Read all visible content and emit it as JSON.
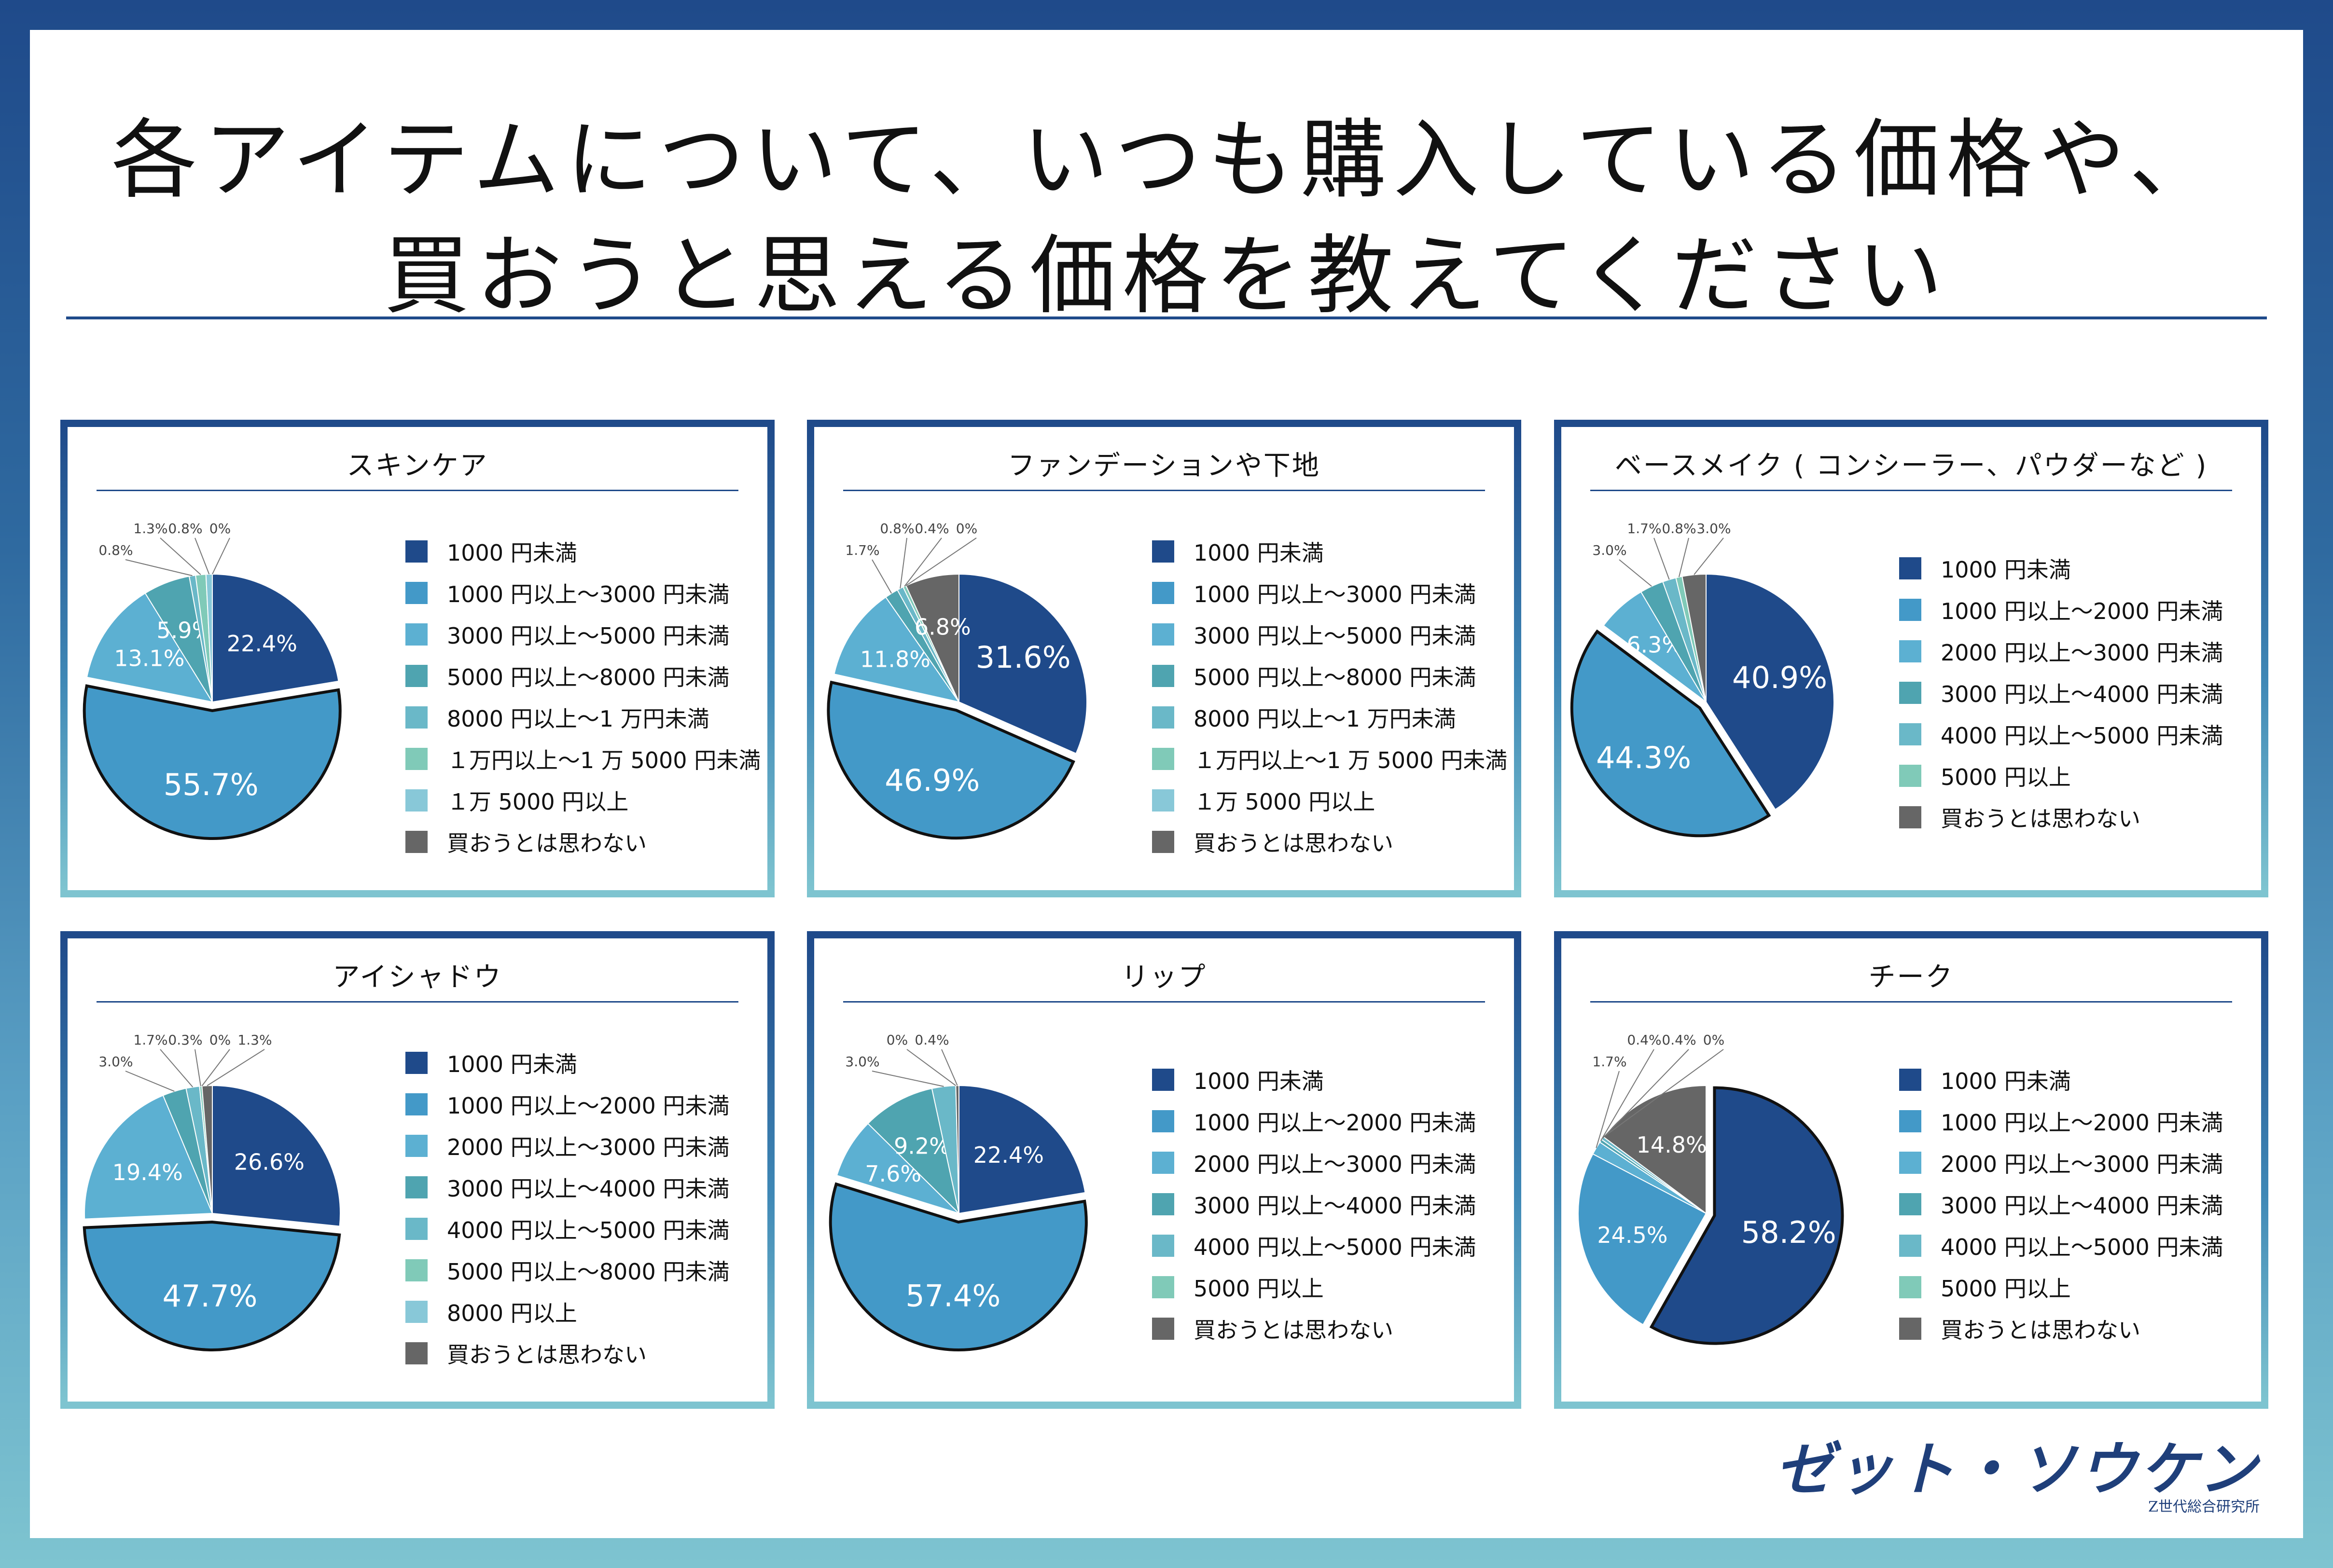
{
  "title_line1": "各アイテムについて、いつも購入している価格や、",
  "title_line2": "買おうと思える価格を教えてください",
  "logo_text": "ゼット・ソウケン",
  "logo_sub": "Z世代総合研究所",
  "colors": [
    "#1f4a8a",
    "#4399c8",
    "#5cb0d2",
    "#4fa4b0",
    "#6ab8c8",
    "#80cab8",
    "#88c8d8",
    "#666666"
  ],
  "chart_data": [
    {
      "type": "pie",
      "title": "スキンケア",
      "categories": [
        "1000 円未満",
        "1000 円以上～3000 円未満",
        "3000 円以上～5000 円未満",
        "5000 円以上～8000 円未満",
        "8000 円以上～1 万円未満",
        "１万円以上～1 万 5000 円未満",
        "１万 5000 円以上",
        "買おうとは思わない"
      ],
      "values": [
        22.4,
        55.7,
        13.1,
        5.9,
        0.8,
        1.3,
        0.8,
        0
      ],
      "labels": [
        "22.4%",
        "55.7%",
        "13.1%",
        "5.9%",
        "0.8%",
        "1.3%",
        "0.8%",
        "0%"
      ],
      "colors": [
        "#1f4a8a",
        "#4399c8",
        "#5cb0d2",
        "#4fa4b0",
        "#6ab8c8",
        "#80cab8",
        "#88c8d8",
        "#666666"
      ],
      "exploded": 1
    },
    {
      "type": "pie",
      "title": "ファンデーションや下地",
      "categories": [
        "1000 円未満",
        "1000 円以上～3000 円未満",
        "3000 円以上～5000 円未満",
        "5000 円以上～8000 円未満",
        "8000 円以上～1 万円未満",
        "１万円以上～1 万 5000 円未満",
        "１万 5000 円以上",
        "買おうとは思わない"
      ],
      "values": [
        31.6,
        46.9,
        11.8,
        1.7,
        0.8,
        0.4,
        0,
        6.8
      ],
      "labels": [
        "31.6%",
        "46.9%",
        "11.8%",
        "1.7%",
        "0.8%",
        "0.4%",
        "0%",
        "6.8%"
      ],
      "colors": [
        "#1f4a8a",
        "#4399c8",
        "#5cb0d2",
        "#4fa4b0",
        "#6ab8c8",
        "#80cab8",
        "#88c8d8",
        "#666666"
      ],
      "exploded": 1
    },
    {
      "type": "pie",
      "title": "ベースメイク ( コンシーラー、パウダーなど )",
      "categories": [
        "1000 円未満",
        "1000 円以上～2000 円未満",
        "2000 円以上～3000 円未満",
        "3000 円以上～4000 円未満",
        "4000 円以上～5000 円未満",
        "5000 円以上",
        "買おうとは思わない"
      ],
      "values": [
        40.9,
        44.3,
        6.3,
        3.0,
        1.7,
        0.8,
        3.0
      ],
      "labels": [
        "40.9%",
        "44.3%",
        "6.3%",
        "3.0%",
        "1.7%",
        "0.8%",
        "3.0%"
      ],
      "colors": [
        "#1f4a8a",
        "#4399c8",
        "#5cb0d2",
        "#4fa4b0",
        "#6ab8c8",
        "#80cab8",
        "#666666"
      ],
      "exploded": 1
    },
    {
      "type": "pie",
      "title": "アイシャドウ",
      "categories": [
        "1000 円未満",
        "1000 円以上～2000 円未満",
        "2000 円以上～3000 円未満",
        "3000 円以上～4000 円未満",
        "4000 円以上～5000 円未満",
        "5000 円以上～8000 円未満",
        "8000 円以上",
        "買おうとは思わない"
      ],
      "values": [
        26.6,
        47.7,
        19.4,
        3.0,
        1.7,
        0.3,
        0,
        1.3
      ],
      "labels": [
        "26.6%",
        "47.7%",
        "19.4%",
        "3.0%",
        "1.7%",
        "0.3%",
        "0%",
        "1.3%"
      ],
      "colors": [
        "#1f4a8a",
        "#4399c8",
        "#5cb0d2",
        "#4fa4b0",
        "#6ab8c8",
        "#80cab8",
        "#88c8d8",
        "#666666"
      ],
      "exploded": 1
    },
    {
      "type": "pie",
      "title": "リップ",
      "categories": [
        "1000 円未満",
        "1000 円以上～2000 円未満",
        "2000 円以上～3000 円未満",
        "3000 円以上～4000 円未満",
        "4000 円以上～5000 円未満",
        "5000 円以上",
        "買おうとは思わない"
      ],
      "values": [
        22.4,
        57.4,
        7.6,
        9.2,
        3.0,
        0,
        0.4
      ],
      "labels": [
        "22.4%",
        "57.4%",
        "7.6%",
        "9.2%",
        "3.0%",
        "0%",
        "0.4%"
      ],
      "colors": [
        "#1f4a8a",
        "#4399c8",
        "#5cb0d2",
        "#4fa4b0",
        "#6ab8c8",
        "#80cab8",
        "#666666"
      ],
      "exploded": 1
    },
    {
      "type": "pie",
      "title": "チーク",
      "categories": [
        "1000 円未満",
        "1000 円以上～2000 円未満",
        "2000 円以上～3000 円未満",
        "3000 円以上～4000 円未満",
        "4000 円以上～5000 円未満",
        "5000 円以上",
        "買おうとは思わない"
      ],
      "values": [
        58.2,
        24.5,
        1.7,
        0.4,
        0.4,
        0,
        14.8
      ],
      "labels": [
        "58.2%",
        "24.5%",
        "1.7%",
        "0.4%",
        "0.4%",
        "0%",
        "14.8%"
      ],
      "colors": [
        "#1f4a8a",
        "#4399c8",
        "#5cb0d2",
        "#4fa4b0",
        "#6ab8c8",
        "#80cab8",
        "#666666"
      ],
      "exploded": 0
    }
  ]
}
